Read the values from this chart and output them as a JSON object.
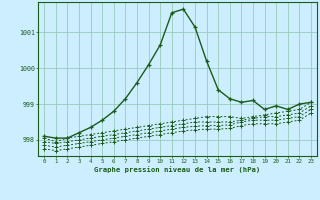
{
  "title": "Graphe pression niveau de la mer (hPa)",
  "bg_color": "#cceeff",
  "grid_color": "#99ccbb",
  "line_color": "#1a5c1a",
  "xlim": [
    -0.5,
    23.5
  ],
  "ylim": [
    997.55,
    1001.85
  ],
  "yticks": [
    998,
    999,
    1000,
    1001
  ],
  "xticks": [
    0,
    1,
    2,
    3,
    4,
    5,
    6,
    7,
    8,
    9,
    10,
    11,
    12,
    13,
    14,
    15,
    16,
    17,
    18,
    19,
    20,
    21,
    22,
    23
  ],
  "series": [
    [
      998.1,
      998.05,
      998.05,
      998.2,
      998.35,
      998.55,
      998.8,
      999.15,
      999.6,
      1000.1,
      1000.65,
      1001.55,
      1001.65,
      1001.15,
      1000.2,
      999.4,
      999.15,
      999.05,
      999.1,
      998.85,
      998.95,
      998.85,
      999.0,
      999.05
    ],
    [
      998.05,
      997.95,
      998.05,
      998.1,
      998.15,
      998.2,
      998.25,
      998.3,
      998.35,
      998.4,
      998.45,
      998.5,
      998.55,
      998.6,
      998.65,
      998.65,
      998.65,
      998.6,
      998.65,
      998.7,
      998.75,
      998.8,
      998.85,
      999.05
    ],
    [
      997.95,
      997.9,
      997.95,
      998.0,
      998.05,
      998.1,
      998.15,
      998.2,
      998.25,
      998.3,
      998.35,
      998.4,
      998.45,
      998.5,
      998.5,
      998.5,
      998.5,
      998.55,
      998.6,
      998.65,
      998.65,
      998.7,
      998.75,
      998.95
    ],
    [
      997.85,
      997.8,
      997.85,
      997.9,
      997.95,
      998.0,
      998.05,
      998.1,
      998.15,
      998.2,
      998.25,
      998.3,
      998.35,
      998.38,
      998.4,
      998.4,
      998.42,
      998.5,
      998.55,
      998.55,
      998.55,
      998.6,
      998.65,
      998.85
    ],
    [
      997.75,
      997.7,
      997.75,
      997.8,
      997.85,
      997.9,
      997.95,
      998.0,
      998.05,
      998.1,
      998.15,
      998.2,
      998.25,
      998.28,
      998.3,
      998.3,
      998.32,
      998.4,
      998.45,
      998.45,
      998.45,
      998.5,
      998.55,
      998.75
    ]
  ]
}
